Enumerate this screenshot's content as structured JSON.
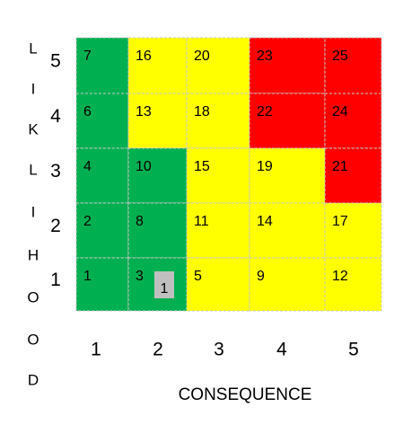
{
  "y_axis_title_letters": [
    "L",
    "I",
    "K",
    "L",
    "I",
    "H",
    "O",
    "O",
    "D"
  ],
  "x_axis_title": "CONSEQUENCE",
  "row_labels": [
    5,
    4,
    3,
    2,
    1
  ],
  "column_labels": [
    1,
    2,
    3,
    4,
    5
  ],
  "cells": [
    [
      {
        "value": 7,
        "color": "#00b050"
      },
      {
        "value": 16,
        "color": "#ffff00"
      },
      {
        "value": 20,
        "color": "#ffff00"
      },
      {
        "value": 23,
        "color": "#ff0000"
      },
      {
        "value": 25,
        "color": "#ff0000"
      }
    ],
    [
      {
        "value": 6,
        "color": "#00b050"
      },
      {
        "value": 13,
        "color": "#ffff00"
      },
      {
        "value": 18,
        "color": "#ffff00"
      },
      {
        "value": 22,
        "color": "#ff0000"
      },
      {
        "value": 24,
        "color": "#ff0000"
      }
    ],
    [
      {
        "value": 4,
        "color": "#00b050"
      },
      {
        "value": 10,
        "color": "#00b050"
      },
      {
        "value": 15,
        "color": "#ffff00"
      },
      {
        "value": 19,
        "color": "#ffff00"
      },
      {
        "value": 21,
        "color": "#ff0000"
      }
    ],
    [
      {
        "value": 2,
        "color": "#00b050"
      },
      {
        "value": 8,
        "color": "#00b050"
      },
      {
        "value": 11,
        "color": "#ffff00"
      },
      {
        "value": 14,
        "color": "#ffff00"
      },
      {
        "value": 17,
        "color": "#ffff00"
      }
    ],
    [
      {
        "value": 1,
        "color": "#00b050"
      },
      {
        "value": 3,
        "color": "#00b050",
        "marker": 1
      },
      {
        "value": 5,
        "color": "#ffff00"
      },
      {
        "value": 9,
        "color": "#ffff00"
      },
      {
        "value": 12,
        "color": "#ffff00"
      }
    ]
  ]
}
